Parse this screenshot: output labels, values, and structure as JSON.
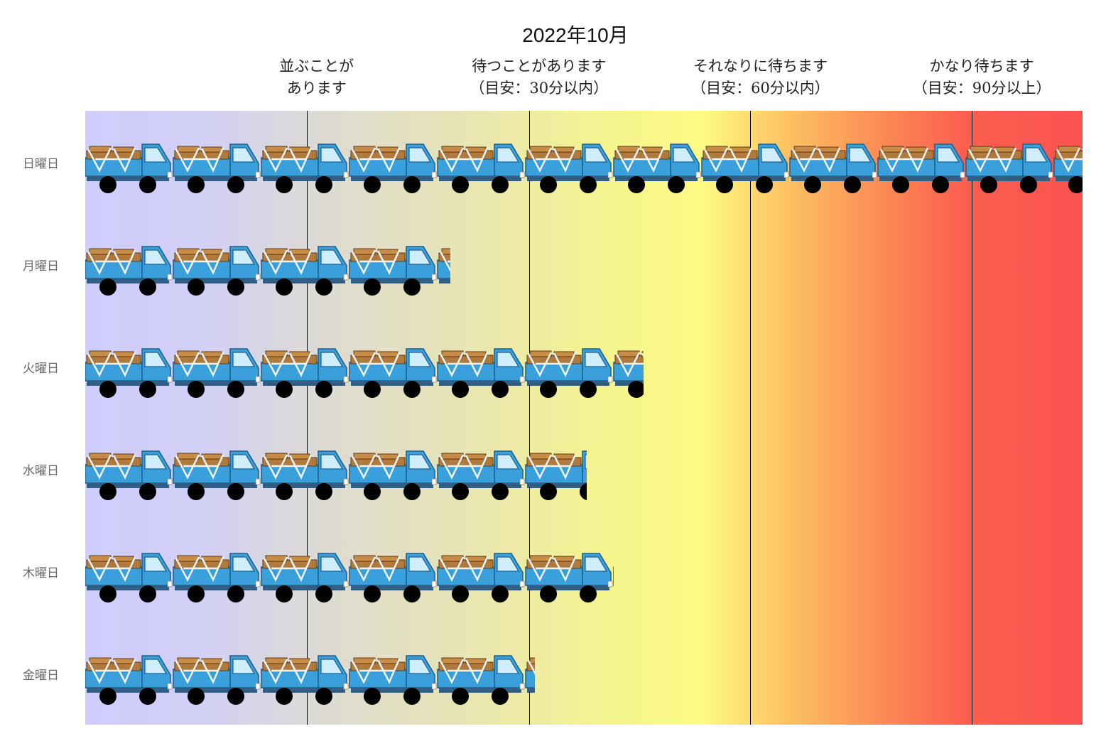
{
  "chart_data": {
    "type": "bar",
    "title": "2022年10月",
    "orientation": "horizontal",
    "categories": [
      "日曜日",
      "月曜日",
      "火曜日",
      "水曜日",
      "木曜日",
      "金曜日"
    ],
    "values": [
      1.0,
      0.366,
      0.56,
      0.503,
      0.53,
      0.451
    ],
    "value_axis_range": [
      0,
      1
    ],
    "zones": [
      {
        "lines": [
          "並ぶことが",
          "あります"
        ],
        "threshold": 0.222
      },
      {
        "lines": [
          "待つことがあります",
          "（目安：30分以内）"
        ],
        "threshold": 0.445
      },
      {
        "lines": [
          "それなりに待ちます",
          "（目安：60分以内）"
        ],
        "threshold": 0.667
      },
      {
        "lines": [
          "かなり待ちます",
          "（目安：90分以上）"
        ],
        "threshold": 0.889
      }
    ],
    "marker_icon": "dump-truck-icon",
    "background_gradient": [
      "#cfcdfb",
      "#e6e3b8",
      "#fdfb82",
      "#fb8a55",
      "#fb5250"
    ],
    "grid": false
  }
}
